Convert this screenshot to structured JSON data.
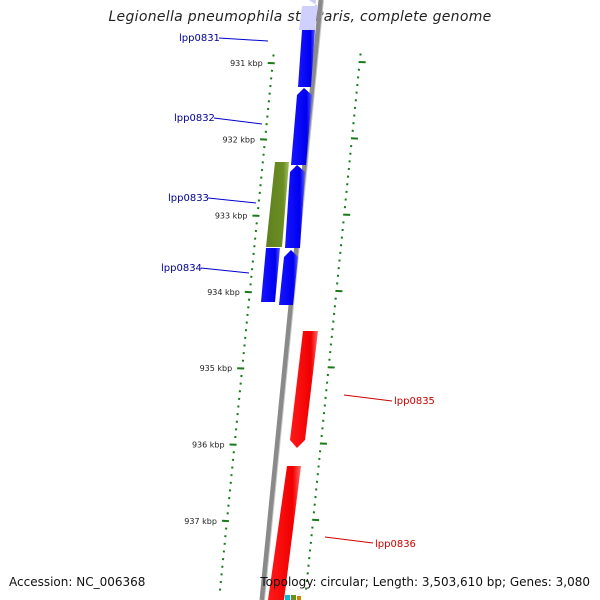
{
  "title": "Legionella pneumophila str. Paris, complete genome",
  "footer": {
    "accession": "Accession: NC_006368",
    "summary": "Topology: circular; Length: 3,503,610 bp; Genes: 3,080"
  },
  "colors": {
    "backbone": "#8a8a8a",
    "tick": "#1a7a1a",
    "forward_gene": "#0000ff",
    "reverse_gene": "#ff0000",
    "other_feature": "#6b8e23",
    "forward_label": "#000099",
    "reverse_label": "#cc0000"
  },
  "scale_ticks": [
    {
      "kbp": 931,
      "label": "931 kbp"
    },
    {
      "kbp": 932,
      "label": "932 kbp"
    },
    {
      "kbp": 933,
      "label": "933 kbp"
    },
    {
      "kbp": 934,
      "label": "934 kbp"
    },
    {
      "kbp": 935,
      "label": "935 kbp"
    },
    {
      "kbp": 936,
      "label": "936 kbp"
    },
    {
      "kbp": 937,
      "label": "937 kbp"
    }
  ],
  "features": [
    {
      "label": "lpp0831",
      "strand": "forward",
      "type": "gene"
    },
    {
      "label": "lpp0832",
      "strand": "forward",
      "type": "gene"
    },
    {
      "label": "lpp0833",
      "strand": "forward",
      "type": "gene"
    },
    {
      "label": "lpp0834",
      "strand": "forward",
      "type": "gene"
    },
    {
      "label": "lpp0835",
      "strand": "reverse",
      "type": "gene"
    },
    {
      "label": "lpp0836",
      "strand": "reverse",
      "type": "gene"
    }
  ]
}
